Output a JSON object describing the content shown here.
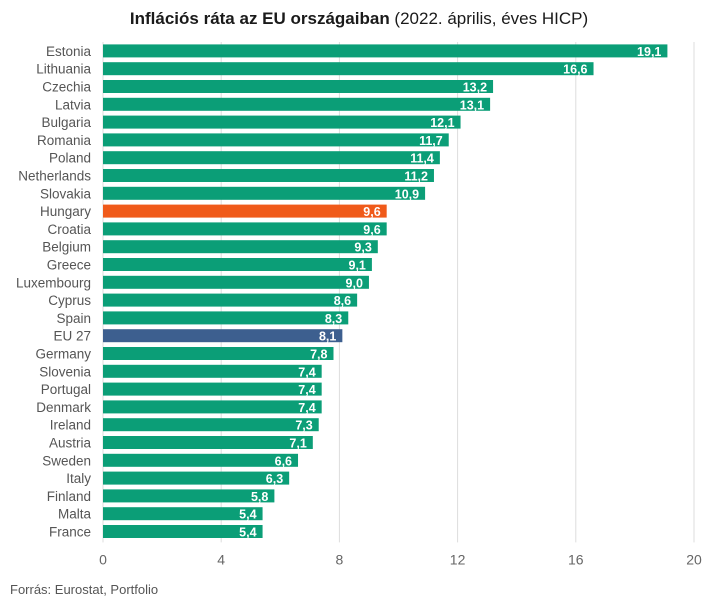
{
  "header": {
    "title_bold": "Inflációs ráta az EU országaiban",
    "title_rest": " (2022. április, éves HICP)"
  },
  "footer": {
    "source": "Forrás: Eurostat, Portfolio"
  },
  "chart_data": {
    "type": "bar",
    "orientation": "horizontal",
    "title": "Inflációs ráta az EU országaiban (2022. április, éves HICP)",
    "categories": [
      "Estonia",
      "Lithuania",
      "Czechia",
      "Latvia",
      "Bulgaria",
      "Romania",
      "Poland",
      "Netherlands",
      "Slovakia",
      "Hungary",
      "Croatia",
      "Belgium",
      "Greece",
      "Luxembourg",
      "Cyprus",
      "Spain",
      "EU 27",
      "Germany",
      "Slovenia",
      "Portugal",
      "Denmark",
      "Ireland",
      "Austria",
      "Sweden",
      "Italy",
      "Finland",
      "Malta",
      "France"
    ],
    "values": [
      19.1,
      16.6,
      13.2,
      13.1,
      12.1,
      11.7,
      11.4,
      11.2,
      10.9,
      9.6,
      9.6,
      9.3,
      9.1,
      9.0,
      8.6,
      8.3,
      8.1,
      7.8,
      7.4,
      7.4,
      7.4,
      7.3,
      7.1,
      6.6,
      6.3,
      5.8,
      5.4,
      5.4
    ],
    "value_labels": [
      "19,1",
      "16,6",
      "13,2",
      "13,1",
      "12,1",
      "11,7",
      "11,4",
      "11,2",
      "10,9",
      "9,6",
      "9,6",
      "9,3",
      "9,1",
      "9,0",
      "8,6",
      "8,3",
      "8,1",
      "7,8",
      "7,4",
      "7,4",
      "7,4",
      "7,3",
      "7,1",
      "6,6",
      "6,3",
      "5,8",
      "5,4",
      "5,4"
    ],
    "xlim": [
      0,
      20
    ],
    "xticks": [
      "0",
      "4",
      "8",
      "12",
      "16",
      "20"
    ],
    "grid": true,
    "colors": {
      "default": "#0b9e77",
      "highlight": "#f05a1a",
      "eu": "#3d5f8f"
    },
    "highlight": {
      "Hungary": "highlight",
      "EU 27": "eu"
    }
  }
}
